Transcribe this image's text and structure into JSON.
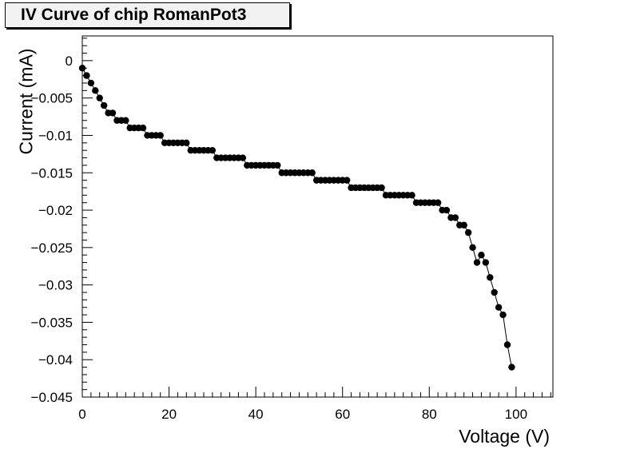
{
  "chart_data": {
    "type": "scatter",
    "title": "IV Curve of chip RomanPot3",
    "xlabel": "Voltage (V)",
    "ylabel": "Current (mA)",
    "xlim": [
      0,
      108.5
    ],
    "ylim": [
      -0.045,
      0.0033
    ],
    "x_ticks": [
      0,
      20,
      40,
      60,
      80,
      100
    ],
    "y_ticks": [
      0,
      -0.005,
      -0.01,
      -0.015,
      -0.02,
      -0.025,
      -0.03,
      -0.035,
      -0.04,
      -0.045
    ],
    "x_tick_labels": [
      "0",
      "20",
      "40",
      "60",
      "80",
      "100"
    ],
    "y_tick_labels": [
      "0",
      "−0.005",
      "−0.01",
      "−0.015",
      "−0.02",
      "−0.025",
      "−0.03",
      "−0.035",
      "−0.04",
      "−0.045"
    ],
    "grid": false,
    "connected_line": true,
    "marker_color": "#000000",
    "series": [
      {
        "x": [
          0,
          1,
          2,
          3,
          4,
          5,
          6,
          7,
          8,
          9,
          10,
          11,
          12,
          13,
          14,
          15,
          16,
          17,
          18,
          19,
          20,
          21,
          22,
          23,
          24,
          25,
          26,
          27,
          28,
          29,
          30,
          31,
          32,
          33,
          34,
          35,
          36,
          37,
          38,
          39,
          40,
          41,
          42,
          43,
          44,
          45,
          46,
          47,
          48,
          49,
          50,
          51,
          52,
          53,
          54,
          55,
          56,
          57,
          58,
          59,
          60,
          61,
          62,
          63,
          64,
          65,
          66,
          67,
          68,
          69,
          70,
          71,
          72,
          73,
          74,
          75,
          76,
          77,
          78,
          79,
          80,
          81,
          82,
          83,
          84,
          85,
          86,
          87,
          88,
          89,
          90,
          91,
          92,
          93,
          94,
          95,
          96,
          97,
          98,
          99
        ],
        "y": [
          -0.001,
          -0.002,
          -0.003,
          -0.004,
          -0.005,
          -0.006,
          -0.007,
          -0.007,
          -0.008,
          -0.008,
          -0.008,
          -0.009,
          -0.009,
          -0.009,
          -0.009,
          -0.01,
          -0.01,
          -0.01,
          -0.01,
          -0.011,
          -0.011,
          -0.011,
          -0.011,
          -0.011,
          -0.011,
          -0.012,
          -0.012,
          -0.012,
          -0.012,
          -0.012,
          -0.012,
          -0.013,
          -0.013,
          -0.013,
          -0.013,
          -0.013,
          -0.013,
          -0.013,
          -0.014,
          -0.014,
          -0.014,
          -0.014,
          -0.014,
          -0.014,
          -0.014,
          -0.014,
          -0.015,
          -0.015,
          -0.015,
          -0.015,
          -0.015,
          -0.015,
          -0.015,
          -0.015,
          -0.016,
          -0.016,
          -0.016,
          -0.016,
          -0.016,
          -0.016,
          -0.016,
          -0.016,
          -0.017,
          -0.017,
          -0.017,
          -0.017,
          -0.017,
          -0.017,
          -0.017,
          -0.017,
          -0.018,
          -0.018,
          -0.018,
          -0.018,
          -0.018,
          -0.018,
          -0.018,
          -0.019,
          -0.019,
          -0.019,
          -0.019,
          -0.019,
          -0.019,
          -0.02,
          -0.02,
          -0.021,
          -0.021,
          -0.022,
          -0.022,
          -0.023,
          -0.025,
          -0.027,
          -0.026,
          -0.027,
          -0.029,
          -0.031,
          -0.033,
          -0.034,
          -0.038,
          -0.041
        ]
      }
    ]
  }
}
